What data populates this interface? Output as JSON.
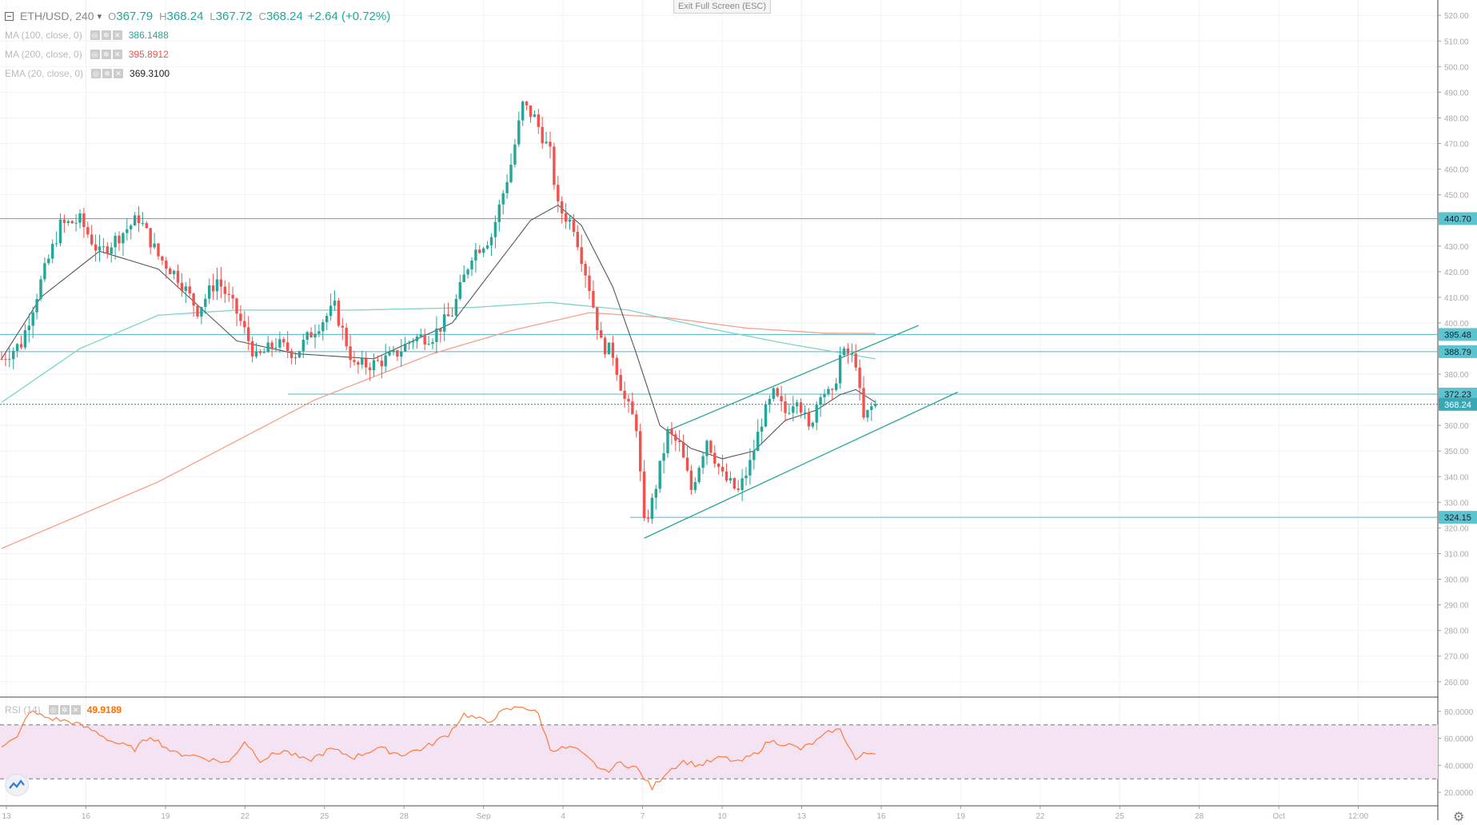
{
  "window": {
    "exit_fullscreen": "Exit Full Screen (ESC)"
  },
  "header": {
    "symbol": "ETH/USD, 240",
    "open_label": "O",
    "open": "367.79",
    "high_label": "H",
    "high": "368.24",
    "low_label": "L",
    "low": "367.72",
    "close_label": "C",
    "close": "368.24",
    "change": "+2.64 (+0.72%)"
  },
  "indicators": [
    {
      "name": "MA (100, close, 0)",
      "value": "386.1488",
      "color": "#26a69a"
    },
    {
      "name": "MA (200, close, 0)",
      "value": "395.8912",
      "color": "#ef5350"
    },
    {
      "name": "EMA (20, close, 0)",
      "value": "369.3100",
      "color": "#222222"
    }
  ],
  "rsi": {
    "name": "RSI (14)",
    "value": "49.9189",
    "color": "#ff6d00",
    "axis_labels": [
      "80.0000",
      "60.0000",
      "40.0000",
      "20.0000"
    ]
  },
  "chart_data": {
    "type": "candlestick",
    "price_axis_labels": [
      "520.00",
      "510.00",
      "500.00",
      "490.00",
      "480.00",
      "470.00",
      "460.00",
      "450.00",
      "440.00",
      "430.00",
      "420.00",
      "410.00",
      "400.00",
      "390.00",
      "380.00",
      "370.00",
      "360.00",
      "350.00",
      "340.00",
      "330.00",
      "320.00",
      "310.00",
      "300.00",
      "290.00",
      "280.00",
      "270.00",
      "260.00"
    ],
    "ylim": [
      254,
      526
    ],
    "price_levels": [
      {
        "label": "440.70",
        "value": 440.7
      },
      {
        "label": "395.48",
        "value": 395.48
      },
      {
        "label": "388.79",
        "value": 388.79
      },
      {
        "label": "372.23",
        "value": 372.23
      },
      {
        "label": "324.15",
        "value": 324.15
      }
    ],
    "current_price": {
      "label": "368.24",
      "value": 368.24
    },
    "time_labels": [
      "13",
      "16",
      "19",
      "22",
      "25",
      "28",
      "Sep",
      "4",
      "7",
      "10",
      "13",
      "16",
      "19",
      "22",
      "25",
      "28",
      "Oct",
      "12:00"
    ],
    "candle_anchors": [
      [
        0,
        386
      ],
      [
        5,
        392
      ],
      [
        10,
        416
      ],
      [
        15,
        438
      ],
      [
        20,
        440
      ],
      [
        25,
        427
      ],
      [
        30,
        434
      ],
      [
        35,
        441
      ],
      [
        40,
        426
      ],
      [
        45,
        418
      ],
      [
        50,
        405
      ],
      [
        55,
        417
      ],
      [
        60,
        404
      ],
      [
        65,
        386
      ],
      [
        70,
        392
      ],
      [
        75,
        388
      ],
      [
        80,
        398
      ],
      [
        85,
        406
      ],
      [
        90,
        383
      ],
      [
        95,
        384
      ],
      [
        100,
        387
      ],
      [
        105,
        394
      ],
      [
        110,
        395
      ],
      [
        115,
        404
      ],
      [
        120,
        427
      ],
      [
        125,
        434
      ],
      [
        130,
        462
      ],
      [
        133,
        485
      ],
      [
        136,
        480
      ],
      [
        140,
        466
      ],
      [
        142,
        445
      ],
      [
        146,
        438
      ],
      [
        150,
        414
      ],
      [
        153,
        392
      ],
      [
        156,
        388
      ],
      [
        159,
        370
      ],
      [
        162,
        360
      ],
      [
        164,
        321
      ],
      [
        166,
        330
      ],
      [
        170,
        357
      ],
      [
        173,
        352
      ],
      [
        176,
        335
      ],
      [
        180,
        355
      ],
      [
        184,
        340
      ],
      [
        188,
        334
      ],
      [
        191,
        345
      ],
      [
        194,
        362
      ],
      [
        197,
        372
      ],
      [
        200,
        365
      ],
      [
        203,
        372
      ],
      [
        206,
        358
      ],
      [
        209,
        374
      ],
      [
        212,
        371
      ],
      [
        214,
        387
      ],
      [
        216,
        388
      ],
      [
        218,
        385
      ],
      [
        219,
        372
      ],
      [
        220,
        362
      ],
      [
        222,
        367
      ],
      [
        223,
        368
      ]
    ],
    "ema20_anchors": [
      [
        0,
        386
      ],
      [
        10,
        410
      ],
      [
        25,
        428
      ],
      [
        40,
        421
      ],
      [
        60,
        393
      ],
      [
        75,
        388
      ],
      [
        95,
        386
      ],
      [
        115,
        400
      ],
      [
        125,
        420
      ],
      [
        135,
        440
      ],
      [
        142,
        446
      ],
      [
        148,
        438
      ],
      [
        156,
        414
      ],
      [
        162,
        388
      ],
      [
        168,
        360
      ],
      [
        176,
        351
      ],
      [
        184,
        347
      ],
      [
        192,
        350
      ],
      [
        200,
        362
      ],
      [
        208,
        366
      ],
      [
        214,
        372
      ],
      [
        218,
        374
      ],
      [
        223,
        369
      ]
    ],
    "ma100_anchors": [
      [
        0,
        369
      ],
      [
        20,
        390
      ],
      [
        40,
        403
      ],
      [
        60,
        405
      ],
      [
        90,
        405
      ],
      [
        120,
        406
      ],
      [
        140,
        408
      ],
      [
        160,
        405
      ],
      [
        180,
        398
      ],
      [
        200,
        392
      ],
      [
        223,
        386
      ]
    ],
    "ma200_anchors": [
      [
        0,
        312
      ],
      [
        40,
        338
      ],
      [
        80,
        370
      ],
      [
        110,
        388
      ],
      [
        130,
        397
      ],
      [
        150,
        404
      ],
      [
        170,
        402
      ],
      [
        190,
        398
      ],
      [
        210,
        396
      ],
      [
        223,
        395.9
      ]
    ],
    "rsi_anchors": [
      [
        0,
        55
      ],
      [
        4,
        60
      ],
      [
        7,
        80
      ],
      [
        12,
        75
      ],
      [
        18,
        72
      ],
      [
        24,
        65
      ],
      [
        28,
        58
      ],
      [
        34,
        52
      ],
      [
        38,
        62
      ],
      [
        44,
        49
      ],
      [
        48,
        48
      ],
      [
        54,
        44
      ],
      [
        58,
        42
      ],
      [
        62,
        58
      ],
      [
        66,
        44
      ],
      [
        72,
        51
      ],
      [
        78,
        43
      ],
      [
        84,
        52
      ],
      [
        90,
        46
      ],
      [
        96,
        53
      ],
      [
        102,
        48
      ],
      [
        108,
        53
      ],
      [
        114,
        63
      ],
      [
        118,
        78
      ],
      [
        124,
        72
      ],
      [
        128,
        80
      ],
      [
        133,
        84
      ],
      [
        137,
        78
      ],
      [
        140,
        52
      ],
      [
        146,
        53
      ],
      [
        150,
        44
      ],
      [
        154,
        35
      ],
      [
        158,
        42
      ],
      [
        162,
        38
      ],
      [
        166,
        23
      ],
      [
        170,
        36
      ],
      [
        174,
        43
      ],
      [
        178,
        40
      ],
      [
        184,
        46
      ],
      [
        188,
        42
      ],
      [
        192,
        48
      ],
      [
        196,
        58
      ],
      [
        200,
        56
      ],
      [
        204,
        52
      ],
      [
        208,
        58
      ],
      [
        212,
        66
      ],
      [
        214,
        66
      ],
      [
        216,
        56
      ],
      [
        218,
        44
      ],
      [
        220,
        48
      ],
      [
        223,
        50
      ]
    ]
  }
}
